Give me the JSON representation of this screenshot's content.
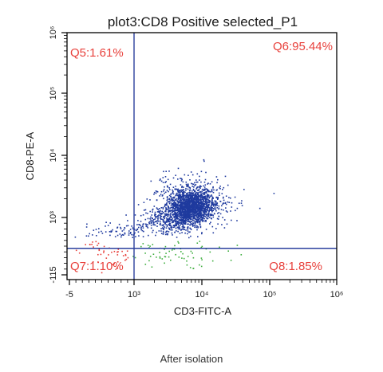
{
  "chart_data": {
    "type": "scatter",
    "title": "plot3:CD8 Positive selected_P1",
    "xlabel": "CD3-FITC-A",
    "ylabel": "CD8-PE-A",
    "x_scale": "biexponential",
    "y_scale": "biexponential",
    "x_ticks": [
      {
        "value": -5,
        "label": "-5"
      },
      {
        "value": 1000,
        "label": "10³"
      },
      {
        "value": 10000,
        "label": "10⁴"
      },
      {
        "value": 100000,
        "label": "10⁵"
      },
      {
        "value": 1000000,
        "label": "10⁶"
      }
    ],
    "y_ticks": [
      {
        "value": -115,
        "label": "-115"
      },
      {
        "value": 1000,
        "label": "10³"
      },
      {
        "value": 10000,
        "label": "10⁴"
      },
      {
        "value": 100000,
        "label": "10⁵"
      },
      {
        "value": 1000000,
        "label": "10⁶"
      }
    ],
    "gate": {
      "x": 1000,
      "y": 400
    },
    "quadrants": [
      {
        "name": "Q5",
        "label": "Q5:1.61%",
        "percent": 1.61,
        "position": "top-left"
      },
      {
        "name": "Q6",
        "label": "Q6:95.44%",
        "percent": 95.44,
        "position": "top-right"
      },
      {
        "name": "Q7",
        "label": "Q7:1.10%",
        "percent": 1.1,
        "position": "bottom-left"
      },
      {
        "name": "Q8",
        "label": "Q8:1.85%",
        "percent": 1.85,
        "position": "bottom-right"
      }
    ],
    "populations": [
      {
        "quadrant": "Q6",
        "center": {
          "x": 7000,
          "y": 1500
        },
        "color": "#1f3a9e"
      },
      {
        "quadrant": "Q5",
        "center": {
          "x": 600,
          "y": 700
        },
        "color": "#1f3a9e"
      },
      {
        "quadrant": "Q7",
        "center": {
          "x": 600,
          "y": 150
        },
        "color": "#e8413c"
      },
      {
        "quadrant": "Q8",
        "center": {
          "x": 4000,
          "y": 200
        },
        "color": "#3fae3f"
      }
    ],
    "colors": {
      "gate_line": "#2a3f9d",
      "quadrant_label": "#e8413c",
      "frame": "#000000"
    }
  },
  "caption": "After isolation"
}
